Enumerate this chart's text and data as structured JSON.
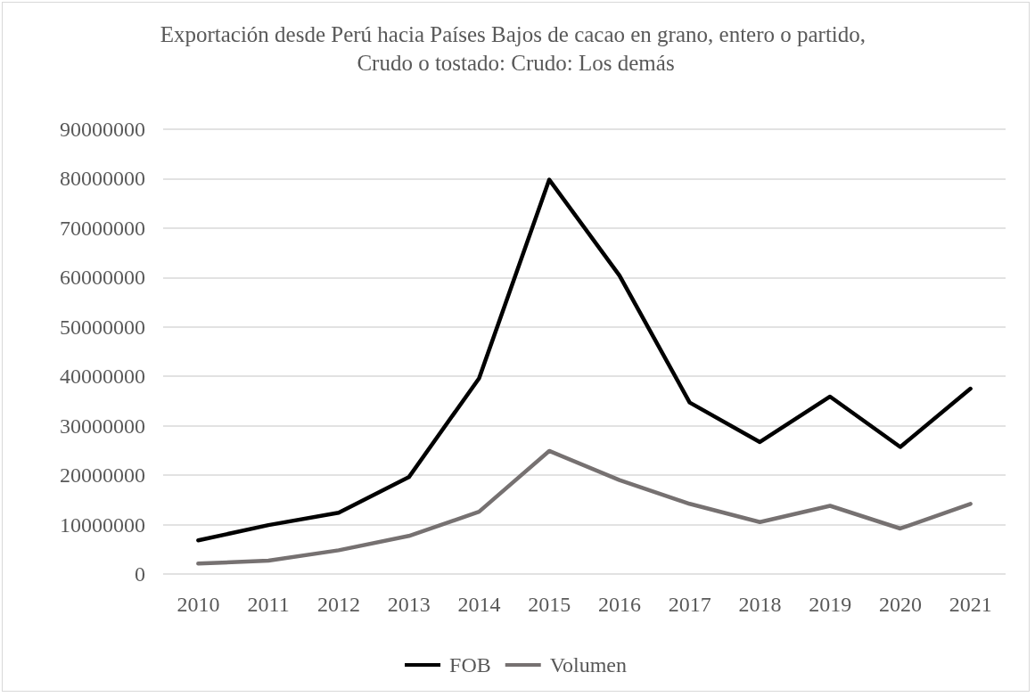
{
  "chart_data": {
    "type": "line",
    "title": "Exportación desde Perú hacia Países Bajos de cacao en grano, entero o partido, Crudo o tostado: Crudo: Los demás",
    "categories": [
      "2010",
      "2011",
      "2012",
      "2013",
      "2014",
      "2015",
      "2016",
      "2017",
      "2018",
      "2019",
      "2020",
      "2021"
    ],
    "series": [
      {
        "name": "FOB",
        "color": "#000000",
        "values": [
          6800000,
          9900000,
          12400000,
          19600000,
          39600000,
          79800000,
          60400000,
          34700000,
          26700000,
          35900000,
          25700000,
          37500000
        ]
      },
      {
        "name": "Volumen",
        "color": "#767171",
        "values": [
          2100000,
          2700000,
          4800000,
          7700000,
          12600000,
          24900000,
          19000000,
          14200000,
          10500000,
          13800000,
          9200000,
          14200000
        ]
      }
    ],
    "ylim": [
      0,
      90000000
    ],
    "yticks": [
      0,
      10000000,
      20000000,
      30000000,
      40000000,
      50000000,
      60000000,
      70000000,
      80000000,
      90000000
    ],
    "grid": "y",
    "legend": "bottom",
    "marker": "none",
    "line_style": "solid"
  }
}
